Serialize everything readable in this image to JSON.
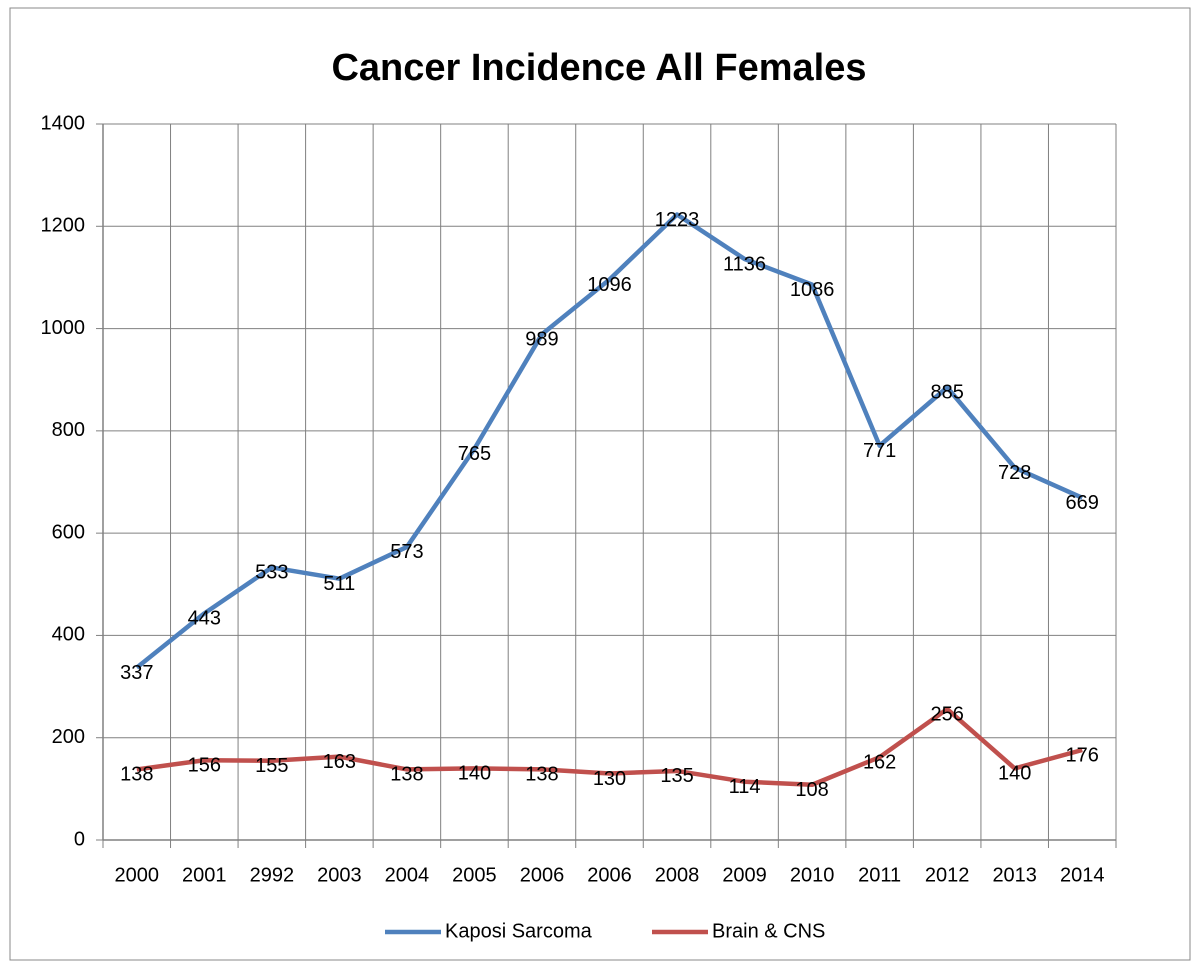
{
  "chart_data": {
    "type": "line",
    "title": "Cancer Incidence All Females",
    "categories": [
      "2000",
      "2001",
      "2992",
      "2003",
      "2004",
      "2005",
      "2006",
      "2006",
      "2008",
      "2009",
      "2010",
      "2011",
      "2012",
      "2013",
      "2014"
    ],
    "series": [
      {
        "name": "Kaposi Sarcoma",
        "color": "#4f81bd",
        "values": [
          337,
          443,
          533,
          511,
          573,
          765,
          989,
          1096,
          1223,
          1136,
          1086,
          771,
          885,
          728,
          669
        ]
      },
      {
        "name": "Brain & CNS",
        "color": "#c0504d",
        "values": [
          138,
          156,
          155,
          163,
          138,
          140,
          138,
          130,
          135,
          114,
          108,
          162,
          256,
          140,
          176
        ]
      }
    ],
    "ylim": [
      0,
      1400
    ],
    "yticks": [
      0,
      200,
      400,
      600,
      800,
      1000,
      1200,
      1400
    ],
    "grid": true,
    "legend": "bottom"
  }
}
